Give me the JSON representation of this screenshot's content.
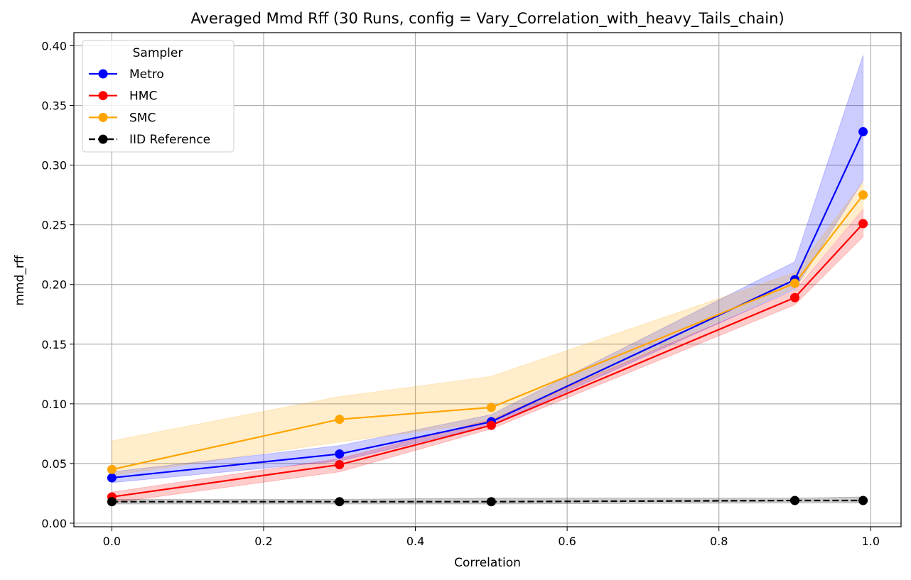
{
  "chart_data": {
    "type": "line",
    "title": "Averaged Mmd Rff (30 Runs, config = Vary_Correlation_with_heavy_Tails_chain)",
    "xlabel": "Correlation",
    "ylabel": "mmd_rff",
    "xlim": [
      -0.05,
      1.04
    ],
    "ylim": [
      -0.003,
      0.411
    ],
    "xticks": [
      0.0,
      0.2,
      0.4,
      0.6,
      0.8,
      1.0
    ],
    "xtick_labels": [
      "0.0",
      "0.2",
      "0.4",
      "0.6",
      "0.8",
      "1.0"
    ],
    "yticks": [
      0.0,
      0.05,
      0.1,
      0.15,
      0.2,
      0.25,
      0.3,
      0.35,
      0.4
    ],
    "ytick_labels": [
      "0.00",
      "0.05",
      "0.10",
      "0.15",
      "0.20",
      "0.25",
      "0.30",
      "0.35",
      "0.40"
    ],
    "grid": true,
    "legend": {
      "title": "Sampler",
      "placement": "top-left"
    },
    "x": [
      0.0,
      0.3,
      0.5,
      0.9,
      0.99
    ],
    "series": [
      {
        "name": "Metro",
        "color": "#0000ff",
        "dashed": false,
        "values": [
          0.038,
          0.058,
          0.085,
          0.204,
          0.328
        ],
        "lower": [
          0.034,
          0.052,
          0.082,
          0.196,
          0.287
        ],
        "upper": [
          0.043,
          0.065,
          0.091,
          0.219,
          0.392
        ]
      },
      {
        "name": "HMC",
        "color": "#ff0000",
        "dashed": false,
        "values": [
          0.022,
          0.049,
          0.082,
          0.189,
          0.251
        ],
        "lower": [
          0.017,
          0.043,
          0.079,
          0.183,
          0.24
        ],
        "upper": [
          0.026,
          0.054,
          0.087,
          0.195,
          0.263
        ]
      },
      {
        "name": "SMC",
        "color": "#ffa500",
        "dashed": false,
        "values": [
          0.045,
          0.087,
          0.097,
          0.201,
          0.275
        ],
        "lower": [
          0.04,
          0.068,
          0.085,
          0.197,
          0.264
        ],
        "upper": [
          0.069,
          0.106,
          0.123,
          0.21,
          0.286
        ]
      },
      {
        "name": "IID Reference",
        "color": "#000000",
        "dashed": true,
        "values": [
          0.018,
          0.018,
          0.018,
          0.019,
          0.019
        ],
        "lower": [
          0.016,
          0.016,
          0.016,
          0.017,
          0.017
        ],
        "upper": [
          0.02,
          0.02,
          0.021,
          0.021,
          0.022
        ]
      }
    ]
  }
}
